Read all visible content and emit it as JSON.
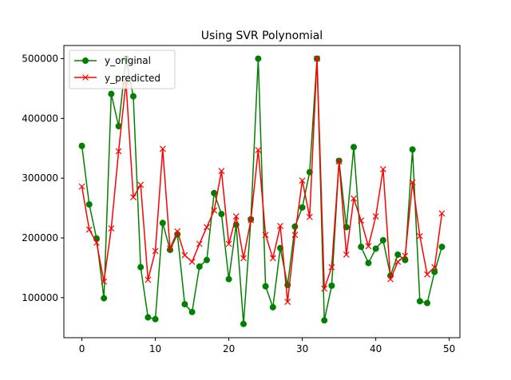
{
  "chart_data": {
    "type": "line",
    "title": "Using SVR Polynomial",
    "xlabel": "",
    "ylabel": "",
    "xlim": [
      -2.45,
      51.45
    ],
    "ylim": [
      33000,
      522000
    ],
    "xticks": [
      0,
      10,
      20,
      30,
      40,
      50
    ],
    "yticks": [
      100000,
      200000,
      300000,
      400000,
      500000
    ],
    "ytick_labels": [
      "100000",
      "200000",
      "300000",
      "400000",
      "500000"
    ],
    "grid": false,
    "legend_position": "top-left",
    "series": [
      {
        "name": "y_original",
        "color": "#008000",
        "marker": "circle",
        "x": [
          0,
          1,
          2,
          3,
          4,
          5,
          6,
          7,
          8,
          9,
          10,
          11,
          12,
          13,
          14,
          15,
          16,
          17,
          18,
          19,
          20,
          21,
          22,
          23,
          24,
          25,
          26,
          27,
          28,
          29,
          30,
          31,
          32,
          33,
          34,
          35,
          36,
          37,
          38,
          39,
          40,
          41,
          42,
          43,
          44,
          45,
          46,
          47,
          48,
          49
        ],
        "values": [
          354000,
          256000,
          199000,
          99000,
          441000,
          387000,
          500000,
          437000,
          151000,
          67000,
          64000,
          225000,
          180000,
          206000,
          89000,
          76000,
          152000,
          163000,
          275000,
          240000,
          131000,
          222000,
          56000,
          231000,
          500000,
          119000,
          84000,
          183000,
          121000,
          219000,
          251000,
          310000,
          500000,
          62000,
          120000,
          329000,
          218000,
          352000,
          185000,
          158000,
          182000,
          196000,
          137000,
          172000,
          163000,
          348000,
          94000,
          91000,
          143000,
          185000
        ]
      },
      {
        "name": "y_predicted",
        "color": "#ff0000",
        "marker": "x",
        "x": [
          0,
          1,
          2,
          3,
          4,
          5,
          6,
          7,
          8,
          9,
          10,
          11,
          12,
          13,
          14,
          15,
          16,
          17,
          18,
          19,
          20,
          21,
          22,
          23,
          24,
          25,
          26,
          27,
          28,
          29,
          30,
          31,
          32,
          33,
          34,
          35,
          36,
          37,
          38,
          39,
          40,
          41,
          42,
          43,
          44,
          45,
          46,
          47,
          48,
          49
        ],
        "values": [
          286000,
          214000,
          192000,
          127000,
          216000,
          345000,
          461000,
          268000,
          289000,
          130000,
          178000,
          349000,
          182000,
          211000,
          171000,
          160000,
          190000,
          218000,
          246000,
          312000,
          190000,
          236000,
          166000,
          230000,
          347000,
          205000,
          166000,
          220000,
          93000,
          205000,
          296000,
          235000,
          500000,
          115000,
          151000,
          328000,
          172000,
          266000,
          229000,
          186000,
          236000,
          315000,
          131000,
          160000,
          170000,
          293000,
          203000,
          139000,
          151000,
          241000
        ]
      }
    ]
  }
}
